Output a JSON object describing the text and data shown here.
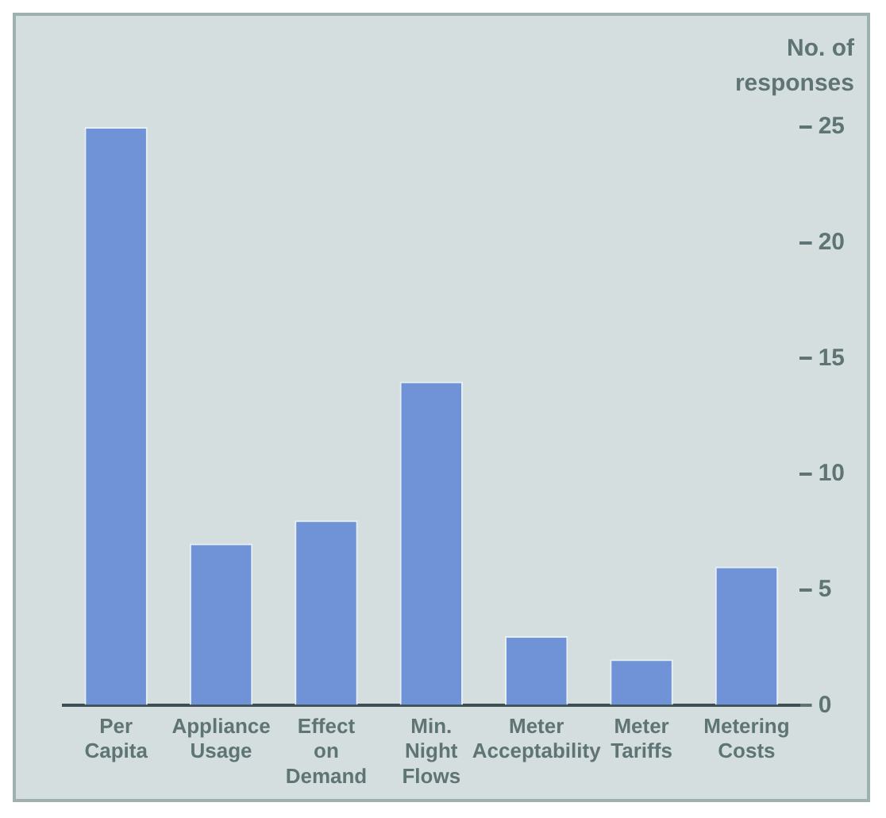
{
  "chart_data": {
    "type": "bar",
    "ylabel": "No. of responses",
    "categories": [
      "Per Capita",
      "Appliance Usage",
      "Effect on Demand",
      "Min. Night Flows",
      "Meter Acceptability",
      "Meter Tariffs",
      "Metering Costs"
    ],
    "values": [
      25,
      7,
      8,
      14,
      3,
      2,
      6
    ],
    "color": "#6f93d6",
    "ylim": [
      0,
      25
    ],
    "yticks": [
      0,
      5,
      10,
      15,
      20,
      25
    ],
    "grid": false,
    "legend": false
  }
}
